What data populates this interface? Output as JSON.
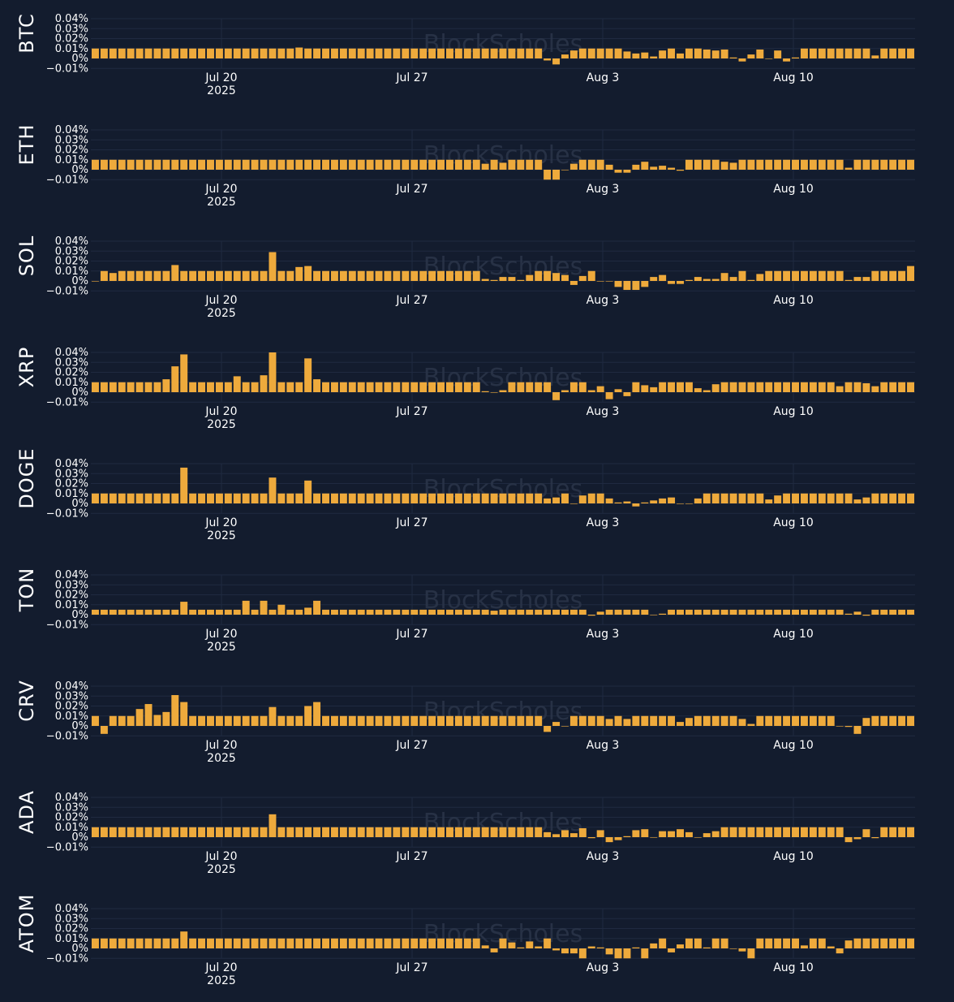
{
  "watermark": "BlockScholes",
  "colors": {
    "background": "#131c2e",
    "bar": "#eeaa3c",
    "grid": "#1f2a40",
    "text": "#ffffff"
  },
  "chart_data": [
    {
      "type": "bar",
      "asset": "BTC",
      "x_ticks": [
        "Jul 20",
        "Jul 27",
        "Aug 3",
        "Aug 10"
      ],
      "x_year": "2025",
      "y_ticks": [
        "0.04%",
        "0.03%",
        "0.02%",
        "0.01%",
        "0%",
        "−0.01%"
      ],
      "ylim": [
        -0.01,
        0.04
      ],
      "unit": "%",
      "values": [
        0.01,
        0.01,
        0.01,
        0.01,
        0.01,
        0.01,
        0.01,
        0.01,
        0.01,
        0.01,
        0.01,
        0.01,
        0.01,
        0.01,
        0.01,
        0.01,
        0.01,
        0.01,
        0.01,
        0.01,
        0.01,
        0.01,
        0.01,
        0.011,
        0.01,
        0.01,
        0.01,
        0.01,
        0.01,
        0.01,
        0.01,
        0.01,
        0.01,
        0.01,
        0.01,
        0.01,
        0.01,
        0.01,
        0.01,
        0.01,
        0.01,
        0.01,
        0.01,
        0.01,
        0.01,
        0.01,
        0.01,
        0.01,
        0.01,
        0.01,
        0.01,
        -0.002,
        -0.006,
        0.004,
        0.008,
        0.01,
        0.01,
        0.01,
        0.01,
        0.01,
        0.007,
        0.005,
        0.006,
        0.002,
        0.008,
        0.01,
        0.005,
        0.01,
        0.01,
        0.009,
        0.008,
        0.009,
        0.001,
        -0.003,
        0.004,
        0.009,
        0.0,
        0.008,
        -0.003,
        0.001,
        0.01,
        0.01,
        0.01,
        0.01,
        0.01,
        0.01,
        0.01,
        0.01,
        0.003,
        0.01,
        0.01,
        0.01,
        0.01
      ]
    },
    {
      "type": "bar",
      "asset": "ETH",
      "x_ticks": [
        "Jul 20",
        "Jul 27",
        "Aug 3",
        "Aug 10"
      ],
      "x_year": "2025",
      "y_ticks": [
        "0.04%",
        "0.03%",
        "0.02%",
        "0.01%",
        "0%",
        "−0.01%"
      ],
      "ylim": [
        -0.01,
        0.04
      ],
      "unit": "%",
      "values": [
        0.01,
        0.01,
        0.01,
        0.01,
        0.01,
        0.01,
        0.01,
        0.01,
        0.01,
        0.01,
        0.01,
        0.01,
        0.01,
        0.01,
        0.01,
        0.01,
        0.01,
        0.01,
        0.01,
        0.01,
        0.01,
        0.01,
        0.01,
        0.01,
        0.01,
        0.01,
        0.01,
        0.01,
        0.01,
        0.01,
        0.01,
        0.01,
        0.01,
        0.01,
        0.01,
        0.01,
        0.01,
        0.01,
        0.01,
        0.01,
        0.01,
        0.01,
        0.01,
        0.01,
        0.006,
        0.01,
        0.007,
        0.01,
        0.01,
        0.01,
        0.01,
        -0.01,
        -0.01,
        0.0,
        0.006,
        0.01,
        0.01,
        0.01,
        0.005,
        -0.003,
        -0.003,
        0.005,
        0.008,
        0.003,
        0.004,
        0.002,
        -0.001,
        0.01,
        0.01,
        0.01,
        0.01,
        0.008,
        0.007,
        0.01,
        0.01,
        0.01,
        0.01,
        0.01,
        0.01,
        0.01,
        0.01,
        0.01,
        0.01,
        0.01,
        0.01,
        0.002,
        0.01,
        0.01,
        0.01,
        0.01,
        0.01,
        0.01,
        0.01
      ]
    },
    {
      "type": "bar",
      "asset": "SOL",
      "x_ticks": [
        "Jul 20",
        "Jul 27",
        "Aug 3",
        "Aug 10"
      ],
      "x_year": "2025",
      "y_ticks": [
        "0.04%",
        "0.03%",
        "0.02%",
        "0.01%",
        "0%",
        "−0.01%"
      ],
      "ylim": [
        -0.01,
        0.04
      ],
      "unit": "%",
      "values": [
        0.0,
        0.01,
        0.008,
        0.01,
        0.01,
        0.01,
        0.01,
        0.01,
        0.01,
        0.016,
        0.01,
        0.01,
        0.01,
        0.01,
        0.01,
        0.01,
        0.01,
        0.01,
        0.01,
        0.01,
        0.029,
        0.01,
        0.01,
        0.014,
        0.015,
        0.01,
        0.01,
        0.01,
        0.01,
        0.01,
        0.01,
        0.01,
        0.01,
        0.01,
        0.01,
        0.01,
        0.01,
        0.01,
        0.01,
        0.01,
        0.01,
        0.01,
        0.01,
        0.01,
        0.002,
        0.001,
        0.004,
        0.004,
        0.001,
        0.006,
        0.01,
        0.01,
        0.008,
        0.006,
        -0.004,
        0.005,
        0.01,
        0.0,
        0.0,
        -0.006,
        -0.009,
        -0.009,
        -0.006,
        0.004,
        0.006,
        -0.003,
        -0.003,
        0.001,
        0.004,
        0.002,
        0.002,
        0.008,
        0.004,
        0.01,
        0.001,
        0.007,
        0.01,
        0.01,
        0.01,
        0.01,
        0.01,
        0.01,
        0.01,
        0.01,
        0.01,
        0.001,
        0.004,
        0.004,
        0.01,
        0.01,
        0.01,
        0.01,
        0.015
      ]
    },
    {
      "type": "bar",
      "asset": "XRP",
      "x_ticks": [
        "Jul 20",
        "Jul 27",
        "Aug 3",
        "Aug 10"
      ],
      "x_year": "2025",
      "y_ticks": [
        "0.04%",
        "0.03%",
        "0.02%",
        "0.01%",
        "0%",
        "−0.01%"
      ],
      "ylim": [
        -0.01,
        0.04
      ],
      "unit": "%",
      "values": [
        0.01,
        0.01,
        0.01,
        0.01,
        0.01,
        0.01,
        0.01,
        0.01,
        0.013,
        0.026,
        0.038,
        0.01,
        0.01,
        0.01,
        0.01,
        0.01,
        0.016,
        0.01,
        0.01,
        0.017,
        0.04,
        0.01,
        0.01,
        0.01,
        0.034,
        0.013,
        0.01,
        0.01,
        0.01,
        0.01,
        0.01,
        0.01,
        0.01,
        0.01,
        0.01,
        0.01,
        0.01,
        0.01,
        0.01,
        0.01,
        0.01,
        0.01,
        0.01,
        0.01,
        0.001,
        0.0,
        0.002,
        0.01,
        0.01,
        0.01,
        0.01,
        0.01,
        -0.008,
        0.002,
        0.01,
        0.01,
        0.002,
        0.006,
        -0.007,
        0.003,
        -0.004,
        0.01,
        0.007,
        0.005,
        0.01,
        0.01,
        0.01,
        0.01,
        0.004,
        0.002,
        0.008,
        0.01,
        0.01,
        0.01,
        0.01,
        0.01,
        0.01,
        0.01,
        0.01,
        0.01,
        0.01,
        0.01,
        0.01,
        0.01,
        0.006,
        0.01,
        0.01,
        0.009,
        0.006,
        0.01,
        0.01,
        0.01,
        0.01
      ]
    },
    {
      "type": "bar",
      "asset": "DOGE",
      "x_ticks": [
        "Jul 20",
        "Jul 27",
        "Aug 3",
        "Aug 10"
      ],
      "x_year": "2025",
      "y_ticks": [
        "0.04%",
        "0.03%",
        "0.02%",
        "0.01%",
        "0%",
        "−0.01%"
      ],
      "ylim": [
        -0.01,
        0.04
      ],
      "unit": "%",
      "values": [
        0.01,
        0.01,
        0.01,
        0.01,
        0.01,
        0.01,
        0.01,
        0.01,
        0.01,
        0.01,
        0.036,
        0.01,
        0.01,
        0.01,
        0.01,
        0.01,
        0.01,
        0.01,
        0.01,
        0.01,
        0.026,
        0.01,
        0.01,
        0.01,
        0.023,
        0.01,
        0.01,
        0.01,
        0.01,
        0.01,
        0.01,
        0.01,
        0.01,
        0.01,
        0.01,
        0.01,
        0.01,
        0.01,
        0.01,
        0.01,
        0.01,
        0.01,
        0.01,
        0.01,
        0.01,
        0.01,
        0.01,
        0.01,
        0.01,
        0.01,
        0.01,
        0.005,
        0.006,
        0.01,
        0.0,
        0.008,
        0.01,
        0.01,
        0.005,
        0.001,
        0.002,
        -0.003,
        0.001,
        0.003,
        0.005,
        0.006,
        0.0,
        0.0,
        0.005,
        0.01,
        0.01,
        0.01,
        0.01,
        0.01,
        0.01,
        0.01,
        0.004,
        0.008,
        0.01,
        0.01,
        0.01,
        0.01,
        0.01,
        0.01,
        0.01,
        0.01,
        0.004,
        0.006,
        0.01,
        0.01,
        0.01,
        0.01,
        0.01
      ]
    },
    {
      "type": "bar",
      "asset": "TON",
      "x_ticks": [
        "Jul 20",
        "Jul 27",
        "Aug 3",
        "Aug 10"
      ],
      "x_year": "2025",
      "y_ticks": [
        "0.04%",
        "0.03%",
        "0.02%",
        "0.01%",
        "0%",
        "−0.01%"
      ],
      "ylim": [
        -0.01,
        0.04
      ],
      "unit": "%",
      "values": [
        0.005,
        0.005,
        0.005,
        0.005,
        0.005,
        0.005,
        0.005,
        0.005,
        0.005,
        0.005,
        0.013,
        0.005,
        0.005,
        0.005,
        0.005,
        0.005,
        0.005,
        0.014,
        0.005,
        0.014,
        0.005,
        0.01,
        0.005,
        0.005,
        0.007,
        0.014,
        0.005,
        0.005,
        0.005,
        0.005,
        0.005,
        0.005,
        0.005,
        0.005,
        0.005,
        0.005,
        0.005,
        0.005,
        0.005,
        0.005,
        0.005,
        0.005,
        0.005,
        0.005,
        0.005,
        0.004,
        0.005,
        0.005,
        0.005,
        0.005,
        0.005,
        0.005,
        0.005,
        0.005,
        0.005,
        0.005,
        -0.001,
        0.003,
        0.005,
        0.005,
        0.005,
        0.005,
        0.005,
        0.0,
        0.001,
        0.005,
        0.005,
        0.005,
        0.005,
        0.005,
        0.005,
        0.005,
        0.005,
        0.005,
        0.005,
        0.005,
        0.005,
        0.005,
        0.005,
        0.005,
        0.005,
        0.005,
        0.005,
        0.005,
        0.005,
        0.001,
        0.003,
        -0.001,
        0.005,
        0.005,
        0.005,
        0.005,
        0.005
      ]
    },
    {
      "type": "bar",
      "asset": "CRV",
      "x_ticks": [
        "Jul 20",
        "Jul 27",
        "Aug 3",
        "Aug 10"
      ],
      "x_year": "2025",
      "y_ticks": [
        "0.04%",
        "0.03%",
        "0.02%",
        "0.01%",
        "0%",
        "−0.01%"
      ],
      "ylim": [
        -0.01,
        0.04
      ],
      "unit": "%",
      "values": [
        0.01,
        -0.008,
        0.01,
        0.01,
        0.01,
        0.017,
        0.022,
        0.011,
        0.014,
        0.031,
        0.024,
        0.01,
        0.01,
        0.01,
        0.01,
        0.01,
        0.01,
        0.01,
        0.01,
        0.01,
        0.019,
        0.01,
        0.01,
        0.01,
        0.02,
        0.024,
        0.01,
        0.01,
        0.01,
        0.01,
        0.01,
        0.01,
        0.01,
        0.01,
        0.01,
        0.01,
        0.01,
        0.01,
        0.01,
        0.01,
        0.01,
        0.01,
        0.01,
        0.01,
        0.01,
        0.01,
        0.01,
        0.01,
        0.01,
        0.01,
        0.01,
        -0.006,
        0.004,
        0.0,
        0.01,
        0.01,
        0.01,
        0.01,
        0.007,
        0.01,
        0.007,
        0.01,
        0.01,
        0.01,
        0.01,
        0.01,
        0.004,
        0.008,
        0.01,
        0.01,
        0.01,
        0.01,
        0.01,
        0.007,
        0.002,
        0.01,
        0.01,
        0.01,
        0.01,
        0.01,
        0.01,
        0.01,
        0.01,
        0.01,
        0.0,
        -0.001,
        -0.008,
        0.008,
        0.01,
        0.01,
        0.01,
        0.01,
        0.01
      ]
    },
    {
      "type": "bar",
      "asset": "ADA",
      "x_ticks": [
        "Jul 20",
        "Jul 27",
        "Aug 3",
        "Aug 10"
      ],
      "x_year": "2025",
      "y_ticks": [
        "0.04%",
        "0.03%",
        "0.02%",
        "0.01%",
        "0%",
        "−0.01%"
      ],
      "ylim": [
        -0.01,
        0.04
      ],
      "unit": "%",
      "values": [
        0.01,
        0.01,
        0.01,
        0.01,
        0.01,
        0.01,
        0.01,
        0.01,
        0.01,
        0.01,
        0.01,
        0.01,
        0.01,
        0.01,
        0.01,
        0.01,
        0.01,
        0.01,
        0.01,
        0.01,
        0.023,
        0.01,
        0.01,
        0.01,
        0.01,
        0.01,
        0.01,
        0.01,
        0.01,
        0.01,
        0.01,
        0.01,
        0.01,
        0.01,
        0.01,
        0.01,
        0.01,
        0.01,
        0.01,
        0.01,
        0.01,
        0.01,
        0.01,
        0.01,
        0.01,
        0.01,
        0.01,
        0.01,
        0.01,
        0.01,
        0.01,
        0.005,
        0.003,
        0.007,
        0.004,
        0.009,
        -0.001,
        0.007,
        -0.005,
        -0.003,
        0.001,
        0.007,
        0.008,
        0.0,
        0.006,
        0.006,
        0.008,
        0.005,
        0.0,
        0.004,
        0.006,
        0.01,
        0.01,
        0.01,
        0.01,
        0.01,
        0.01,
        0.01,
        0.01,
        0.01,
        0.01,
        0.01,
        0.01,
        0.01,
        0.01,
        -0.005,
        -0.002,
        0.008,
        -0.001,
        0.01,
        0.01,
        0.01,
        0.01
      ]
    },
    {
      "type": "bar",
      "asset": "ATOM",
      "x_ticks": [
        "Jul 20",
        "Jul 27",
        "Aug 3",
        "Aug 10"
      ],
      "x_year": "2025",
      "y_ticks": [
        "0.04%",
        "0.03%",
        "0.02%",
        "0.01%",
        "0%",
        "−0.01%"
      ],
      "ylim": [
        -0.01,
        0.04
      ],
      "unit": "%",
      "values": [
        0.01,
        0.01,
        0.01,
        0.01,
        0.01,
        0.01,
        0.01,
        0.01,
        0.01,
        0.01,
        0.017,
        0.01,
        0.01,
        0.01,
        0.01,
        0.01,
        0.01,
        0.01,
        0.01,
        0.01,
        0.01,
        0.01,
        0.01,
        0.01,
        0.01,
        0.01,
        0.01,
        0.01,
        0.01,
        0.01,
        0.01,
        0.01,
        0.01,
        0.01,
        0.01,
        0.01,
        0.01,
        0.01,
        0.01,
        0.01,
        0.01,
        0.01,
        0.01,
        0.01,
        0.003,
        -0.004,
        0.01,
        0.006,
        0.001,
        0.007,
        0.002,
        0.01,
        -0.002,
        -0.005,
        -0.005,
        -0.01,
        0.002,
        0.001,
        -0.006,
        -0.01,
        -0.01,
        0.001,
        -0.01,
        0.005,
        0.01,
        -0.004,
        0.004,
        0.01,
        0.01,
        0.001,
        0.01,
        0.01,
        0.0,
        -0.003,
        -0.01,
        0.01,
        0.01,
        0.01,
        0.01,
        0.01,
        0.003,
        0.01,
        0.01,
        0.002,
        -0.005,
        0.008,
        0.01,
        0.01,
        0.01,
        0.01,
        0.01,
        0.01,
        0.01
      ]
    }
  ]
}
